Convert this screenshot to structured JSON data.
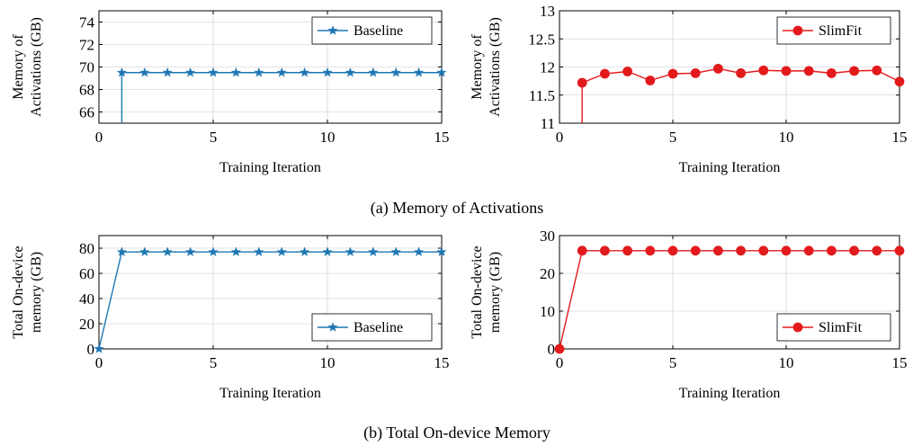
{
  "captions": {
    "a": "(a) Memory of Activations",
    "b": "(b) Total On-device Memory"
  },
  "colors": {
    "baseline": "#1f77b4",
    "slimfit": "#e31a1c"
  },
  "chart_data": [
    {
      "type": "line",
      "marker": "star",
      "xlabel": "Training Iteration",
      "ylabel": [
        "Memory of",
        "Activations (GB)"
      ],
      "xlim": [
        0,
        15
      ],
      "ylim": [
        65,
        75
      ],
      "xticks": [
        0,
        5,
        10,
        15
      ],
      "yticks": [
        66,
        68,
        70,
        72,
        74
      ],
      "legend_position": "top-right",
      "series": [
        {
          "name": "Baseline",
          "x": [
            1,
            1,
            2,
            3,
            4,
            5,
            6,
            7,
            8,
            9,
            10,
            11,
            12,
            13,
            14,
            15
          ],
          "y": [
            65,
            69.5,
            69.5,
            69.5,
            69.5,
            69.5,
            69.5,
            69.5,
            69.5,
            69.5,
            69.5,
            69.5,
            69.5,
            69.5,
            69.5,
            69.5
          ],
          "markers": [
            false,
            true,
            true,
            true,
            true,
            true,
            true,
            true,
            true,
            true,
            true,
            true,
            true,
            true,
            true,
            true
          ]
        }
      ]
    },
    {
      "type": "line",
      "marker": "circle",
      "xlabel": "Training Iteration",
      "ylabel": [
        "Memory of",
        "Activations (GB)"
      ],
      "xlim": [
        0,
        15
      ],
      "ylim": [
        11,
        13
      ],
      "xticks": [
        0,
        5,
        10,
        15
      ],
      "yticks": [
        11,
        11.5,
        12,
        12.5,
        13
      ],
      "legend_position": "top-right",
      "series": [
        {
          "name": "SlimFit",
          "x": [
            1,
            1,
            2,
            3,
            4,
            5,
            6,
            7,
            8,
            9,
            10,
            11,
            12,
            13,
            14,
            15
          ],
          "y": [
            11,
            11.72,
            11.88,
            11.92,
            11.76,
            11.88,
            11.89,
            11.97,
            11.89,
            11.94,
            11.93,
            11.93,
            11.89,
            11.93,
            11.94,
            11.74
          ],
          "markers": [
            false,
            true,
            true,
            true,
            true,
            true,
            true,
            true,
            true,
            true,
            true,
            true,
            true,
            true,
            true,
            true
          ]
        }
      ]
    },
    {
      "type": "line",
      "marker": "star",
      "xlabel": "Training Iteration",
      "ylabel": [
        "Total On-device",
        "memory (GB)"
      ],
      "xlim": [
        0,
        15
      ],
      "ylim": [
        0,
        90
      ],
      "xticks": [
        0,
        5,
        10,
        15
      ],
      "yticks": [
        0,
        20,
        40,
        60,
        80
      ],
      "legend_position": "bottom-right",
      "series": [
        {
          "name": "Baseline",
          "x": [
            0,
            1,
            2,
            3,
            4,
            5,
            6,
            7,
            8,
            9,
            10,
            11,
            12,
            13,
            14,
            15
          ],
          "y": [
            0,
            77,
            77,
            77,
            77,
            77,
            77,
            77,
            77,
            77,
            77,
            77,
            77,
            77,
            77,
            77
          ],
          "markers": [
            true,
            true,
            true,
            true,
            true,
            true,
            true,
            true,
            true,
            true,
            true,
            true,
            true,
            true,
            true,
            true
          ]
        }
      ]
    },
    {
      "type": "line",
      "marker": "circle",
      "xlabel": "Training Iteration",
      "ylabel": [
        "Total On-device",
        "memory (GB)"
      ],
      "xlim": [
        0,
        15
      ],
      "ylim": [
        0,
        30
      ],
      "xticks": [
        0,
        5,
        10,
        15
      ],
      "yticks": [
        0,
        10,
        20,
        30
      ],
      "legend_position": "bottom-right",
      "series": [
        {
          "name": "SlimFit",
          "x": [
            0,
            1,
            2,
            3,
            4,
            5,
            6,
            7,
            8,
            9,
            10,
            11,
            12,
            13,
            14,
            15
          ],
          "y": [
            0,
            26,
            26,
            26,
            26,
            26,
            26,
            26,
            26,
            26,
            26,
            26,
            26,
            26,
            26,
            26
          ],
          "markers": [
            true,
            true,
            true,
            true,
            true,
            true,
            true,
            true,
            true,
            true,
            true,
            true,
            true,
            true,
            true,
            true
          ]
        }
      ]
    }
  ]
}
